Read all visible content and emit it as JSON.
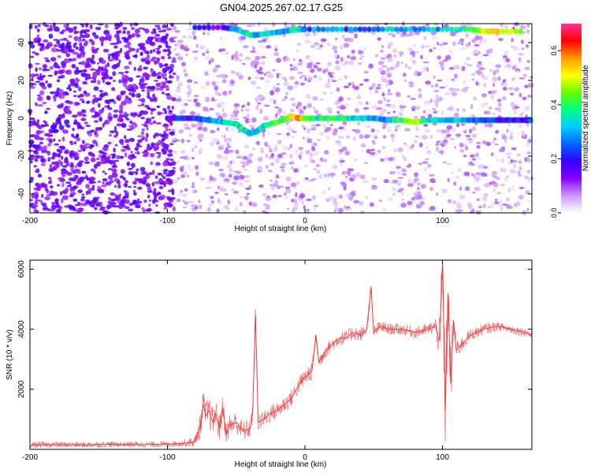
{
  "figure": {
    "title": "GN04.2025.267.02.17.G25"
  },
  "chart_data": [
    {
      "type": "heatmap",
      "title": "GN04.2025.267.02.17.G25",
      "xlabel": "Height of straight line (km)",
      "ylabel": "Frequency (Hz)",
      "xlim": [
        -200,
        165
      ],
      "ylim": [
        -50,
        50
      ],
      "x_ticks": [
        -200,
        -100,
        0,
        100
      ],
      "y_ticks": [
        -40,
        -20,
        0,
        20,
        40
      ],
      "colorbar": {
        "label": "Normalized spectral amplitude",
        "range": [
          0,
          0.7
        ],
        "ticks": [
          "0.0",
          "0.2",
          "0.4",
          "0.6"
        ],
        "stops": [
          "#ffffff",
          "#cc99ff",
          "#8800ff",
          "#3300ff",
          "#0066ff",
          "#00ccff",
          "#00ff88",
          "#66ff00",
          "#ffff00",
          "#ff9900",
          "#ff0000",
          "#ff3399"
        ]
      },
      "noise_regions": [
        {
          "x_range": [
            -200,
            -95
          ],
          "density": "high",
          "level": "0.10-0.18"
        },
        {
          "x_range": [
            -95,
            165
          ],
          "density": "medium",
          "level": "0.02-0.10"
        }
      ],
      "series": [
        {
          "x": [
            -100,
            -90,
            -80,
            -70,
            -60,
            -50,
            -45,
            -40,
            -35,
            -30,
            -20,
            -10,
            -5,
            0,
            10,
            20,
            30,
            40,
            50,
            60,
            70,
            80,
            90,
            100,
            110,
            120,
            130,
            140,
            150,
            160,
            165
          ],
          "y": [
            0,
            0,
            0,
            -1,
            -2,
            -3,
            -6,
            -8,
            -7,
            -4,
            -2,
            1,
            0,
            0,
            0,
            0,
            0,
            0,
            0,
            -1,
            -1,
            -2,
            -1,
            -1,
            -1,
            -1,
            -1,
            -1,
            -1,
            -1,
            -1
          ],
          "amplitude": [
            0.15,
            0.2,
            0.2,
            0.25,
            0.3,
            0.35,
            0.35,
            0.3,
            0.3,
            0.35,
            0.4,
            0.5,
            0.6,
            0.45,
            0.35,
            0.4,
            0.35,
            0.3,
            0.3,
            0.3,
            0.4,
            0.5,
            0.35,
            0.3,
            0.3,
            0.25,
            0.2,
            0.2,
            0.2,
            0.2,
            0.2
          ]
        },
        {
          "x": [
            -80,
            -60,
            -50,
            -40,
            -35,
            -25,
            -15,
            -5,
            0,
            20,
            40,
            60,
            80,
            100,
            120,
            130,
            140,
            160
          ],
          "y": [
            48,
            48,
            47,
            44,
            44,
            45,
            46,
            47,
            47,
            47,
            47,
            47,
            47,
            47,
            47,
            46,
            46,
            46
          ],
          "amplitude": [
            0.15,
            0.15,
            0.3,
            0.35,
            0.3,
            0.3,
            0.3,
            0.35,
            0.25,
            0.25,
            0.25,
            0.3,
            0.3,
            0.3,
            0.35,
            0.45,
            0.5,
            0.45
          ]
        }
      ]
    },
    {
      "type": "line",
      "xlabel": "Height of straight line (km)",
      "ylabel": "SNR (10 * v/v)",
      "xlim": [
        -200,
        165
      ],
      "ylim": [
        0,
        6300
      ],
      "x_ticks": [
        -200,
        -100,
        0,
        100
      ],
      "y_ticks": [
        2000,
        4000,
        6000
      ],
      "grid": false,
      "color": "#ee3333",
      "x": [
        -200,
        -180,
        -160,
        -140,
        -120,
        -100,
        -90,
        -80,
        -76,
        -74,
        -72,
        -70,
        -67,
        -65,
        -62,
        -60,
        -57,
        -55,
        -50,
        -45,
        -40,
        -38,
        -36,
        -34,
        -30,
        -25,
        -20,
        -15,
        -10,
        -5,
        0,
        5,
        8,
        10,
        15,
        20,
        25,
        30,
        35,
        40,
        45,
        48,
        50,
        55,
        60,
        70,
        80,
        90,
        95,
        98,
        100,
        102,
        104,
        106,
        108,
        110,
        120,
        130,
        140,
        150,
        160,
        165
      ],
      "y": [
        150,
        160,
        150,
        170,
        160,
        170,
        200,
        250,
        800,
        1500,
        1100,
        1300,
        900,
        1200,
        700,
        1400,
        500,
        800,
        900,
        600,
        700,
        1200,
        4500,
        900,
        1000,
        1200,
        1300,
        1500,
        1700,
        2100,
        2400,
        2600,
        3800,
        2900,
        3300,
        3500,
        3700,
        3700,
        3900,
        3800,
        4000,
        5400,
        3900,
        4100,
        4000,
        4000,
        3900,
        4000,
        4100,
        3600,
        6200,
        1300,
        5200,
        2200,
        4300,
        3300,
        3800,
        4000,
        4100,
        4000,
        3900,
        3800
      ],
      "spread": [
        100,
        100,
        100,
        100,
        100,
        100,
        100,
        200,
        400,
        500,
        500,
        500,
        500,
        500,
        500,
        400,
        400,
        400,
        400,
        350,
        350,
        350,
        350,
        300,
        300,
        300,
        300,
        300,
        300,
        300,
        300,
        300,
        250,
        250,
        250,
        250,
        250,
        250,
        250,
        250,
        200,
        200,
        200,
        200,
        200,
        200,
        200,
        200,
        300,
        800,
        1500,
        1500,
        1500,
        1200,
        800,
        300,
        200,
        200,
        150,
        150,
        150,
        150
      ]
    }
  ]
}
